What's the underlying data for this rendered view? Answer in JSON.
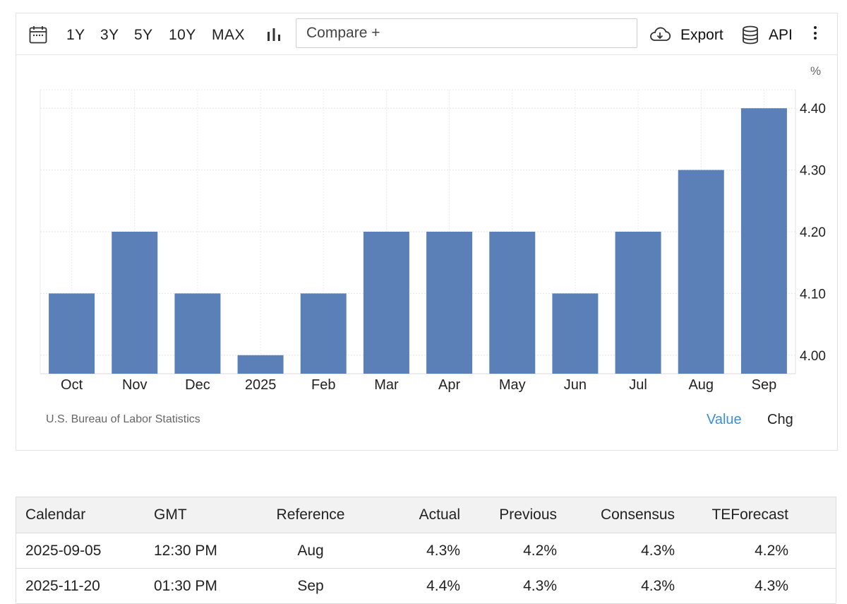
{
  "toolbar": {
    "calendar_icon": "calendar-icon",
    "ranges": [
      "1Y",
      "3Y",
      "5Y",
      "10Y",
      "MAX"
    ],
    "chart_type_icon": "bar-chart-icon",
    "compare_placeholder": "Compare +",
    "export_label": "Export",
    "export_icon": "cloud-download-icon",
    "api_label": "API",
    "api_icon": "database-icon",
    "more_icon": "kebab-menu-icon"
  },
  "chart_data": {
    "type": "bar",
    "categories": [
      "Oct",
      "Nov",
      "Dec",
      "2025",
      "Feb",
      "Mar",
      "Apr",
      "May",
      "Jun",
      "Jul",
      "Aug",
      "Sep"
    ],
    "values": [
      4.1,
      4.2,
      4.1,
      4.0,
      4.1,
      4.2,
      4.2,
      4.2,
      4.1,
      4.2,
      4.3,
      4.4
    ],
    "unit": "%",
    "ylim": [
      3.97,
      4.43
    ],
    "yticks": [
      "4.00",
      "4.10",
      "4.20",
      "4.30",
      "4.40"
    ],
    "y_axis_side": "right",
    "grid": true,
    "bar_color": "#5b80b8"
  },
  "footer": {
    "source": "U.S. Bureau of Labor Statistics",
    "mode_value": "Value",
    "mode_chg": "Chg",
    "active_color": "#3a8fd8"
  },
  "calendar": {
    "headers": [
      "Calendar",
      "GMT",
      "Reference",
      "Actual",
      "Previous",
      "Consensus",
      "TEForecast"
    ],
    "rows": [
      [
        "2025-09-05",
        "12:30 PM",
        "Aug",
        "4.3%",
        "4.2%",
        "4.3%",
        "4.2%"
      ],
      [
        "2025-11-20",
        "01:30 PM",
        "Sep",
        "4.4%",
        "4.3%",
        "4.3%",
        "4.3%"
      ]
    ]
  }
}
